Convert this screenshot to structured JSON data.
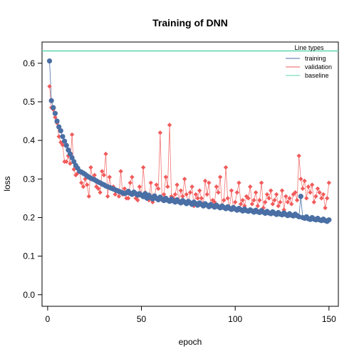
{
  "chart_data": {
    "type": "line",
    "title": "Training of DNN",
    "xlabel": "epoch",
    "ylabel": "loss",
    "xlim": [
      -3,
      155
    ],
    "ylim": [
      -0.03,
      0.655
    ],
    "xticks": [
      0,
      50,
      100,
      150
    ],
    "yticks": [
      0.0,
      0.1,
      0.2,
      0.3,
      0.4,
      0.5,
      0.6
    ],
    "ytick_labels": [
      "0.0",
      "0.1",
      "0.2",
      "0.3",
      "0.4",
      "0.5",
      "0.6"
    ],
    "grid": false,
    "legend": {
      "title": "Line types",
      "placement": "top-right",
      "entries": [
        "training",
        "validation",
        "baseline"
      ]
    },
    "colors": {
      "training": "#4A6FA5",
      "validation": "#F15B5B",
      "baseline": "#5DD6B0"
    },
    "baseline": 0.632,
    "x": [
      1,
      2,
      3,
      4,
      5,
      6,
      7,
      8,
      9,
      10,
      11,
      12,
      13,
      14,
      15,
      16,
      17,
      18,
      19,
      20,
      21,
      22,
      23,
      24,
      25,
      26,
      27,
      28,
      29,
      30,
      31,
      32,
      33,
      34,
      35,
      36,
      37,
      38,
      39,
      40,
      41,
      42,
      43,
      44,
      45,
      46,
      47,
      48,
      49,
      50,
      51,
      52,
      53,
      54,
      55,
      56,
      57,
      58,
      59,
      60,
      61,
      62,
      63,
      64,
      65,
      66,
      67,
      68,
      69,
      70,
      71,
      72,
      73,
      74,
      75,
      76,
      77,
      78,
      79,
      80,
      81,
      82,
      83,
      84,
      85,
      86,
      87,
      88,
      89,
      90,
      91,
      92,
      93,
      94,
      95,
      96,
      97,
      98,
      99,
      100,
      101,
      102,
      103,
      104,
      105,
      106,
      107,
      108,
      109,
      110,
      111,
      112,
      113,
      114,
      115,
      116,
      117,
      118,
      119,
      120,
      121,
      122,
      123,
      124,
      125,
      126,
      127,
      128,
      129,
      130,
      131,
      132,
      133,
      134,
      135,
      136,
      137,
      138,
      139,
      140,
      141,
      142,
      143,
      144,
      145,
      146,
      147,
      148,
      149,
      150
    ],
    "series": [
      {
        "name": "training",
        "values": [
          0.606,
          0.503,
          0.485,
          0.47,
          0.45,
          0.435,
          0.425,
          0.41,
          0.398,
          0.387,
          0.375,
          0.365,
          0.355,
          0.345,
          0.335,
          0.328,
          0.32,
          0.318,
          0.315,
          0.312,
          0.308,
          0.305,
          0.302,
          0.3,
          0.298,
          0.295,
          0.292,
          0.29,
          0.287,
          0.285,
          0.282,
          0.28,
          0.278,
          0.276,
          0.274,
          0.272,
          0.27,
          0.268,
          0.266,
          0.264,
          0.262,
          0.264,
          0.268,
          0.263,
          0.26,
          0.266,
          0.262,
          0.258,
          0.262,
          0.258,
          0.254,
          0.262,
          0.25,
          0.258,
          0.252,
          0.248,
          0.256,
          0.25,
          0.246,
          0.253,
          0.248,
          0.244,
          0.25,
          0.245,
          0.242,
          0.248,
          0.243,
          0.24,
          0.246,
          0.241,
          0.238,
          0.244,
          0.24,
          0.236,
          0.242,
          0.238,
          0.234,
          0.24,
          0.236,
          0.232,
          0.238,
          0.234,
          0.23,
          0.236,
          0.232,
          0.228,
          0.234,
          0.23,
          0.227,
          0.232,
          0.228,
          0.225,
          0.23,
          0.226,
          0.223,
          0.228,
          0.224,
          0.221,
          0.226,
          0.222,
          0.219,
          0.224,
          0.22,
          0.217,
          0.222,
          0.218,
          0.216,
          0.22,
          0.217,
          0.214,
          0.219,
          0.215,
          0.213,
          0.218,
          0.214,
          0.211,
          0.216,
          0.212,
          0.21,
          0.215,
          0.211,
          0.208,
          0.213,
          0.209,
          0.207,
          0.212,
          0.208,
          0.205,
          0.21,
          0.206,
          0.204,
          0.209,
          0.205,
          0.202,
          0.255,
          0.2,
          0.198,
          0.202,
          0.197,
          0.195,
          0.2,
          0.196,
          0.194,
          0.198,
          0.194,
          0.192,
          0.196,
          0.192,
          0.19,
          0.194
        ]
      },
      {
        "name": "validation",
        "values": [
          0.54,
          0.485,
          0.48,
          0.46,
          0.445,
          0.41,
          0.395,
          0.388,
          0.345,
          0.345,
          0.36,
          0.34,
          0.415,
          0.325,
          0.31,
          0.315,
          0.32,
          0.29,
          0.28,
          0.3,
          0.285,
          0.255,
          0.33,
          0.3,
          0.31,
          0.28,
          0.275,
          0.265,
          0.32,
          0.31,
          0.365,
          0.255,
          0.305,
          0.275,
          0.28,
          0.26,
          0.27,
          0.255,
          0.32,
          0.26,
          0.275,
          0.25,
          0.25,
          0.29,
          0.305,
          0.265,
          0.25,
          0.245,
          0.28,
          0.26,
          0.33,
          0.265,
          0.255,
          0.245,
          0.29,
          0.24,
          0.25,
          0.285,
          0.275,
          0.42,
          0.245,
          0.26,
          0.305,
          0.28,
          0.44,
          0.255,
          0.25,
          0.26,
          0.285,
          0.24,
          0.27,
          0.255,
          0.3,
          0.26,
          0.24,
          0.265,
          0.28,
          0.23,
          0.26,
          0.25,
          0.27,
          0.25,
          0.235,
          0.295,
          0.26,
          0.29,
          0.23,
          0.245,
          0.24,
          0.28,
          0.265,
          0.305,
          0.23,
          0.245,
          0.33,
          0.25,
          0.225,
          0.27,
          0.225,
          0.24,
          0.265,
          0.29,
          0.235,
          0.245,
          0.23,
          0.255,
          0.25,
          0.28,
          0.235,
          0.245,
          0.265,
          0.23,
          0.245,
          0.29,
          0.225,
          0.24,
          0.26,
          0.25,
          0.27,
          0.235,
          0.245,
          0.26,
          0.23,
          0.24,
          0.27,
          0.22,
          0.255,
          0.24,
          0.25,
          0.235,
          0.26,
          0.265,
          0.245,
          0.36,
          0.3,
          0.275,
          0.295,
          0.25,
          0.28,
          0.265,
          0.285,
          0.24,
          0.255,
          0.275,
          0.265,
          0.25,
          0.26,
          0.225,
          0.25,
          0.29
        ]
      }
    ]
  }
}
